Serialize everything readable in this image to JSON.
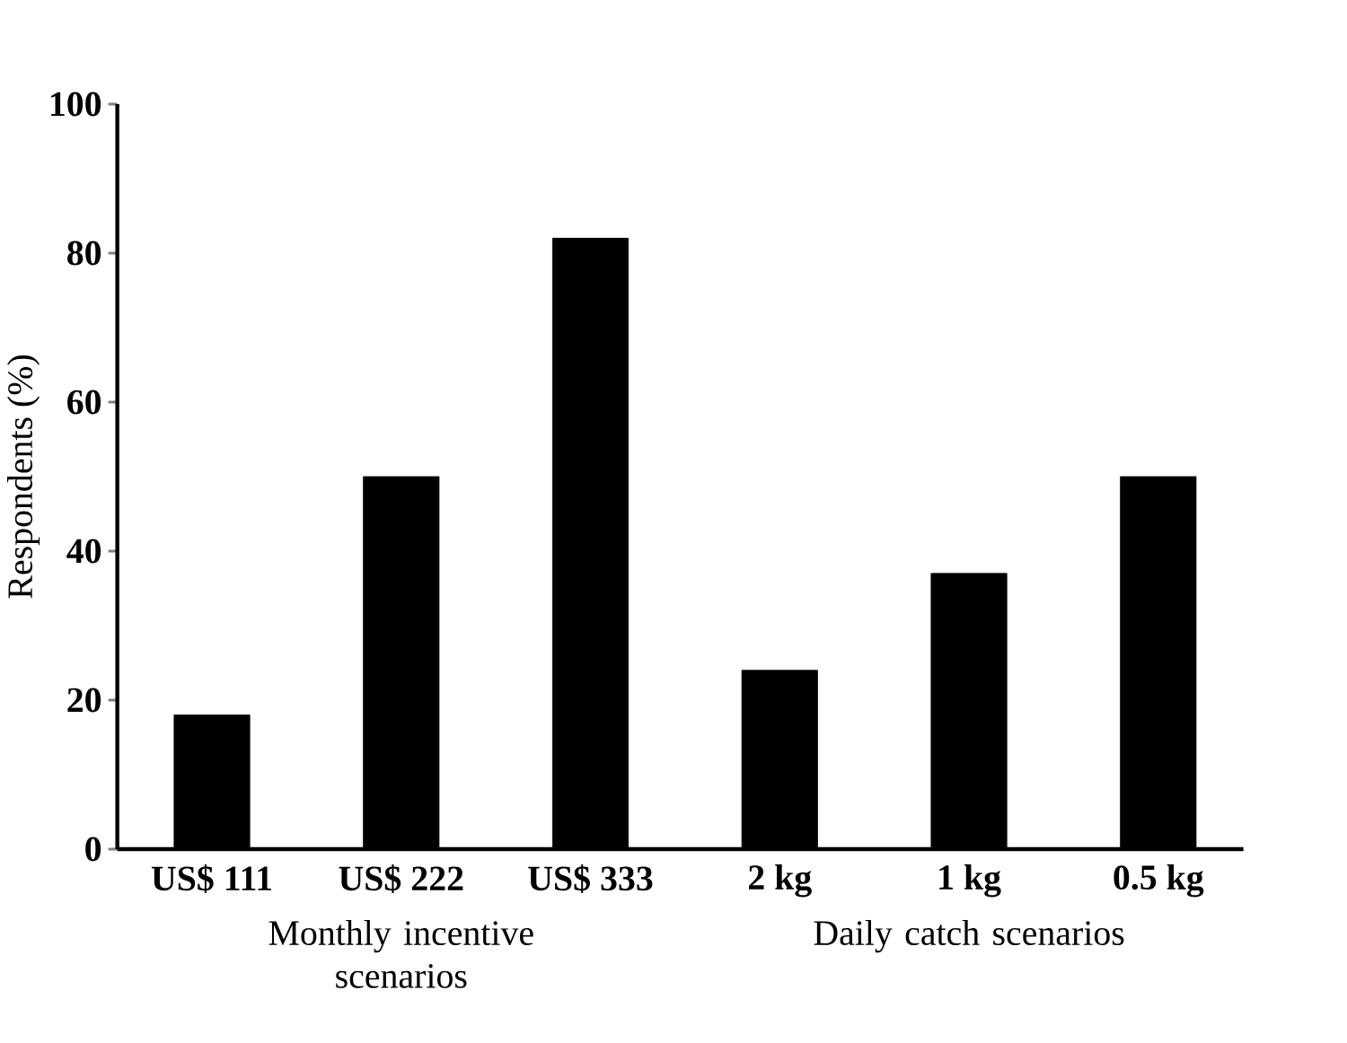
{
  "chart_data": {
    "type": "bar",
    "ylabel": "Respondents (%)",
    "categories": [
      "US$ 111",
      "US$ 222",
      "US$ 333",
      "2 kg",
      "1 kg",
      "0.5 kg"
    ],
    "values": [
      18,
      50,
      82,
      24,
      37,
      50
    ],
    "color": "#000000",
    "ylim": [
      0,
      100
    ],
    "yticks": [
      0,
      20,
      40,
      60,
      80,
      100
    ],
    "annotations": [
      "Monthly incentive scenarios",
      "Daily catch scenarios"
    ]
  }
}
